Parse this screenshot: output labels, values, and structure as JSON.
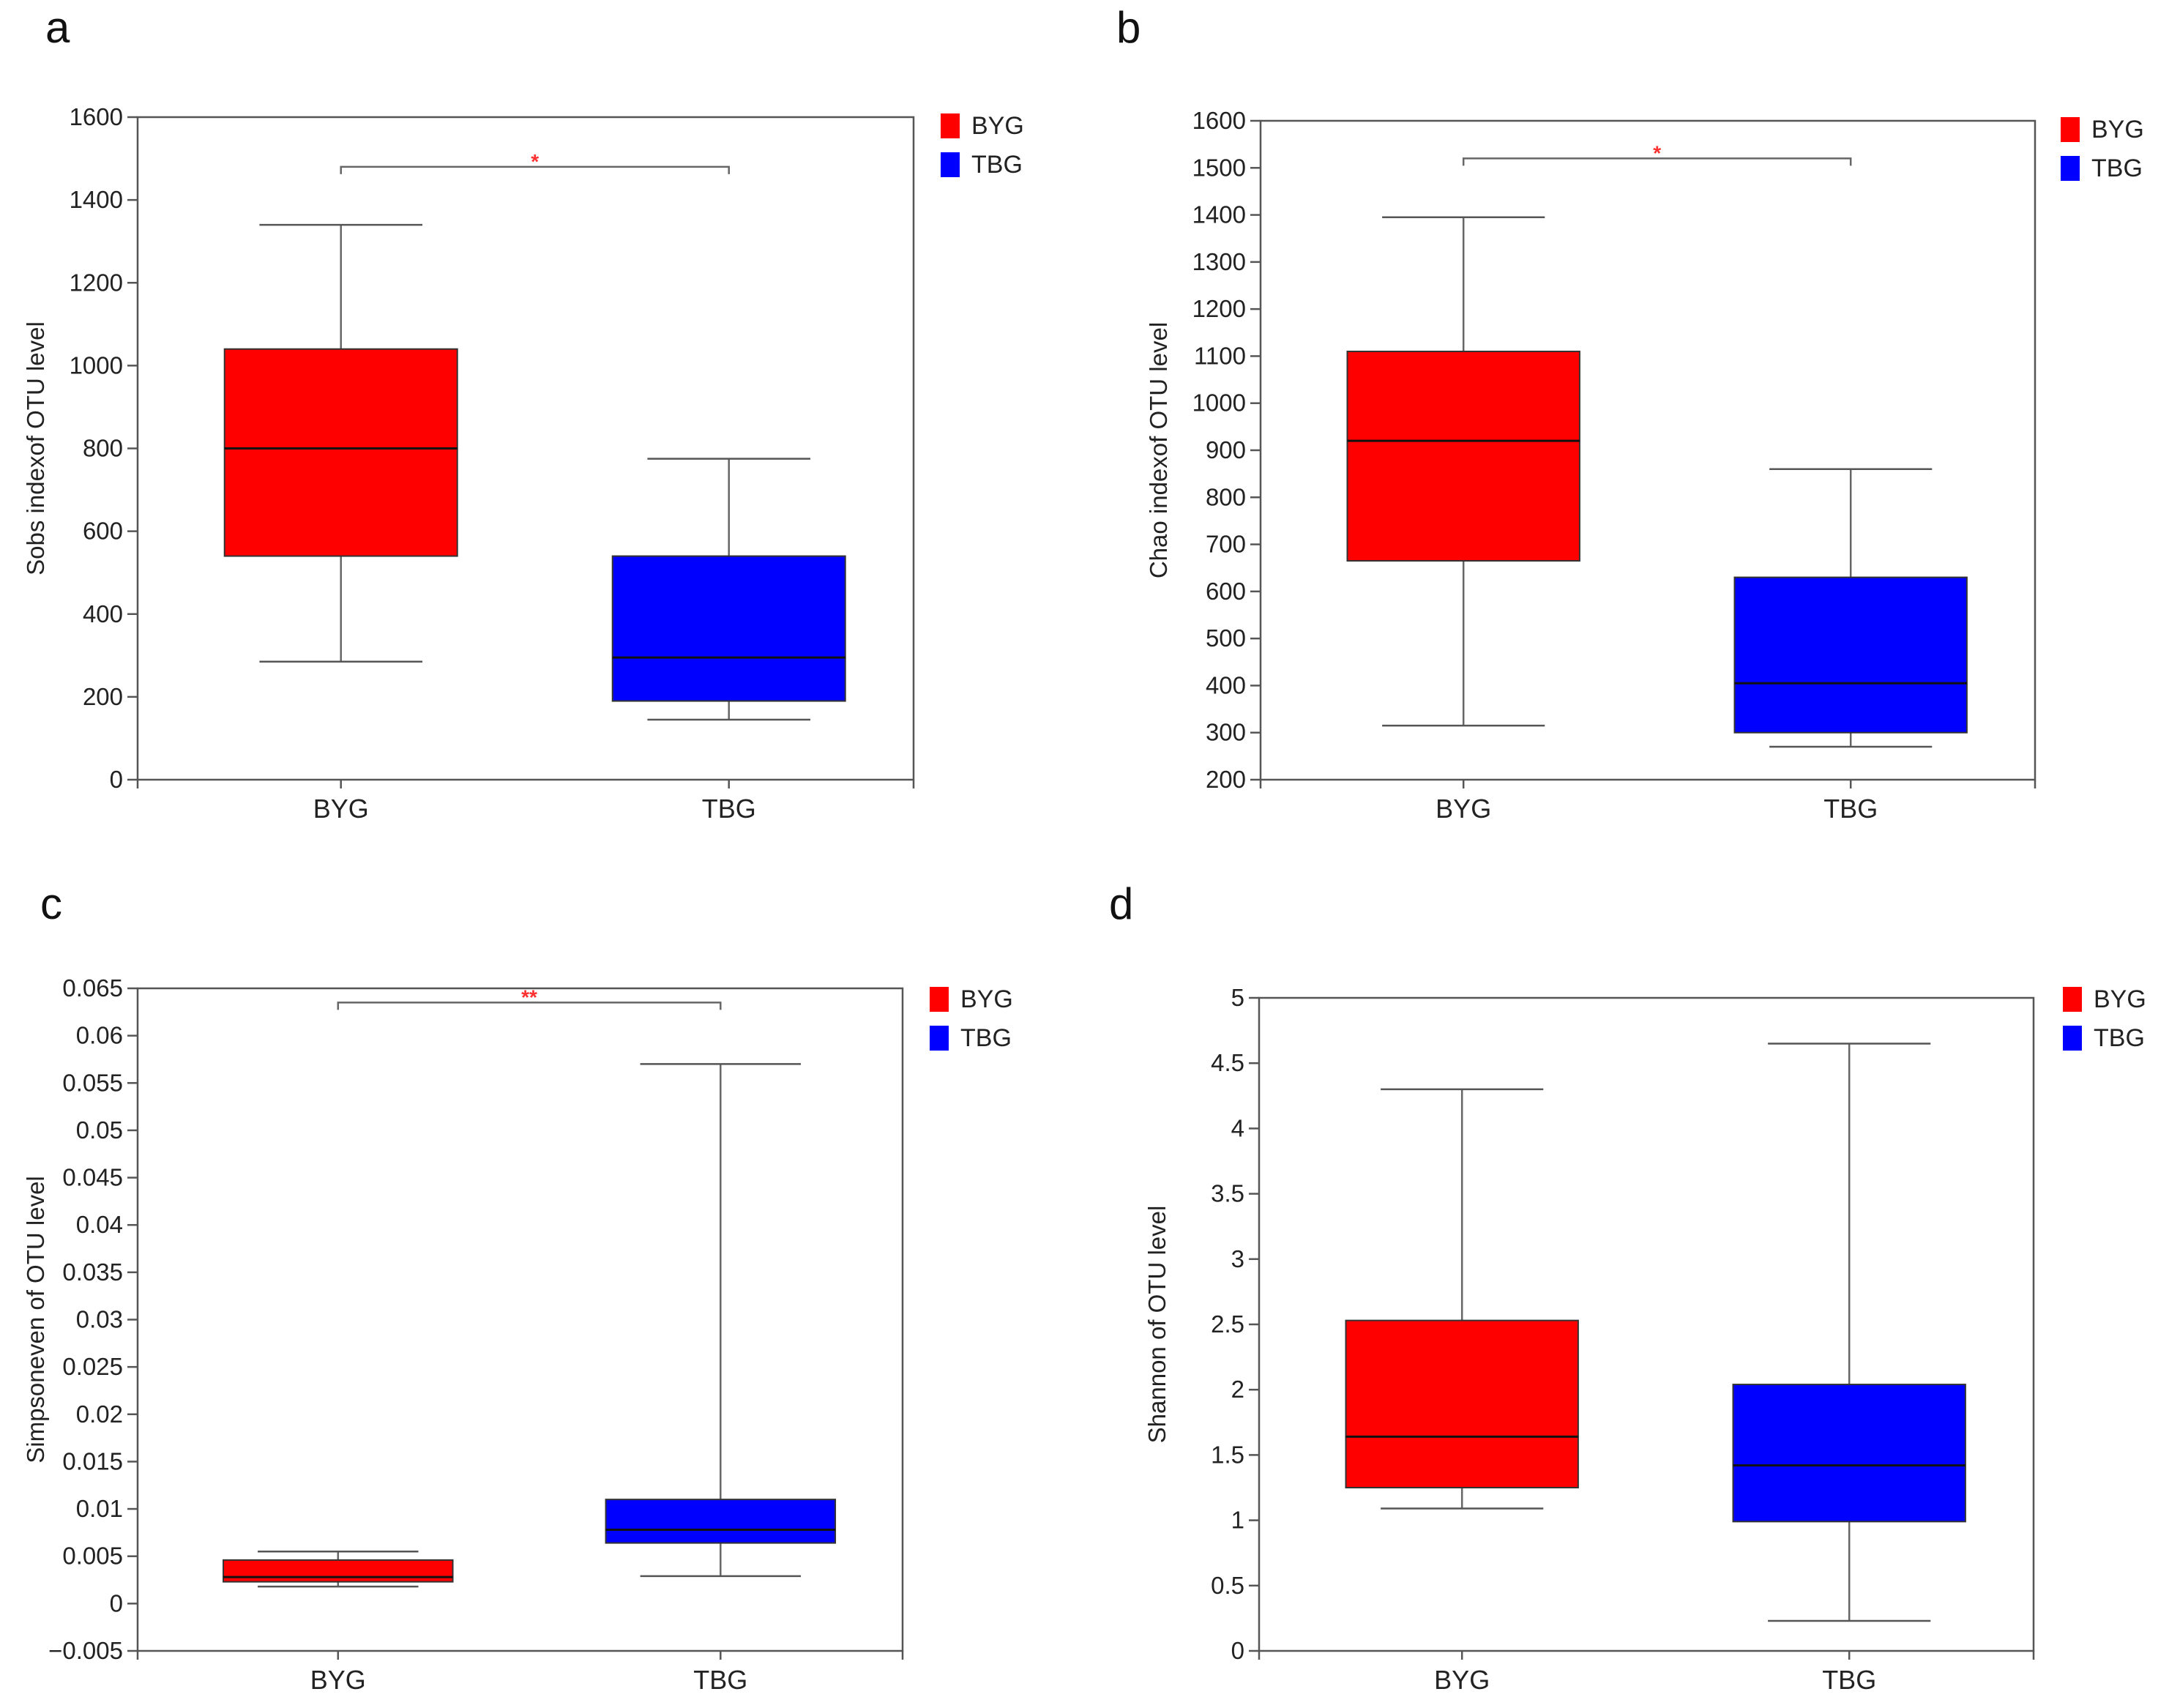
{
  "colors": {
    "BYG": "#ff0000",
    "TBG": "#0000ff",
    "axis": "#555555",
    "sig": "#ff3030"
  },
  "chart_data": [
    {
      "type": "box",
      "panel": "a",
      "ylabel": "Sobs indexof OTU level",
      "ylim": [
        0,
        1600
      ],
      "yticks": [
        0,
        200,
        400,
        600,
        800,
        1000,
        1200,
        1400,
        1600
      ],
      "yticklabels": [
        "0",
        "200",
        "400",
        "600",
        "800",
        "1000",
        "1200",
        "1400",
        "1600"
      ],
      "categories": [
        "BYG",
        "TBG"
      ],
      "boxes": [
        {
          "name": "BYG",
          "min": 285,
          "q1": 540,
          "median": 800,
          "q3": 1040,
          "max": 1340
        },
        {
          "name": "TBG",
          "min": 145,
          "q1": 190,
          "median": 295,
          "q3": 540,
          "max": 775
        }
      ],
      "significance": {
        "label": "*",
        "y": 1480
      },
      "legend": [
        "BYG",
        "TBG"
      ]
    },
    {
      "type": "box",
      "panel": "b",
      "ylabel": "Chao indexof OTU level",
      "ylim": [
        200,
        1600
      ],
      "yticks": [
        200,
        300,
        400,
        500,
        600,
        700,
        800,
        900,
        1000,
        1100,
        1200,
        1300,
        1400,
        1500,
        1600
      ],
      "yticklabels": [
        "200",
        "300",
        "400",
        "500",
        "600",
        "700",
        "800",
        "900",
        "1000",
        "1100",
        "1200",
        "1300",
        "1400",
        "1500",
        "1600"
      ],
      "categories": [
        "BYG",
        "TBG"
      ],
      "boxes": [
        {
          "name": "BYG",
          "min": 315,
          "q1": 665,
          "median": 920,
          "q3": 1110,
          "max": 1395
        },
        {
          "name": "TBG",
          "min": 270,
          "q1": 300,
          "median": 405,
          "q3": 630,
          "max": 860
        }
      ],
      "significance": {
        "label": "*",
        "y": 1520
      },
      "legend": [
        "BYG",
        "TBG"
      ]
    },
    {
      "type": "box",
      "panel": "c",
      "ylabel": "Simpsoneven of OTU level",
      "ylim": [
        -0.005,
        0.065
      ],
      "yticks": [
        -0.005,
        0,
        0.005,
        0.01,
        0.015,
        0.02,
        0.025,
        0.03,
        0.035,
        0.04,
        0.045,
        0.05,
        0.055,
        0.06,
        0.065
      ],
      "yticklabels": [
        "−0.005",
        "0",
        "0.005",
        "0.01",
        "0.015",
        "0.02",
        "0.025",
        "0.03",
        "0.035",
        "0.04",
        "0.045",
        "0.05",
        "0.055",
        "0.06",
        "0.065"
      ],
      "categories": [
        "BYG",
        "TBG"
      ],
      "boxes": [
        {
          "name": "BYG",
          "min": 0.0018,
          "q1": 0.0023,
          "median": 0.0028,
          "q3": 0.0046,
          "max": 0.0055
        },
        {
          "name": "TBG",
          "min": 0.0029,
          "q1": 0.0064,
          "median": 0.0078,
          "q3": 0.011,
          "max": 0.057
        }
      ],
      "significance": {
        "label": "**",
        "y": 0.0635
      },
      "legend": [
        "BYG",
        "TBG"
      ]
    },
    {
      "type": "box",
      "panel": "d",
      "ylabel": "Shannon of OTU level",
      "ylim": [
        0,
        5
      ],
      "yticks": [
        0,
        0.5,
        1,
        1.5,
        2,
        2.5,
        3,
        3.5,
        4,
        4.5,
        5
      ],
      "yticklabels": [
        "0",
        "0.5",
        "1",
        "1.5",
        "2",
        "2.5",
        "3",
        "3.5",
        "4",
        "4.5",
        "5"
      ],
      "categories": [
        "BYG",
        "TBG"
      ],
      "boxes": [
        {
          "name": "BYG",
          "min": 1.09,
          "q1": 1.25,
          "median": 1.64,
          "q3": 2.53,
          "max": 4.3
        },
        {
          "name": "TBG",
          "min": 0.23,
          "q1": 0.99,
          "median": 1.42,
          "q3": 2.04,
          "max": 4.65
        }
      ],
      "significance": null,
      "legend": [
        "BYG",
        "TBG"
      ]
    }
  ]
}
